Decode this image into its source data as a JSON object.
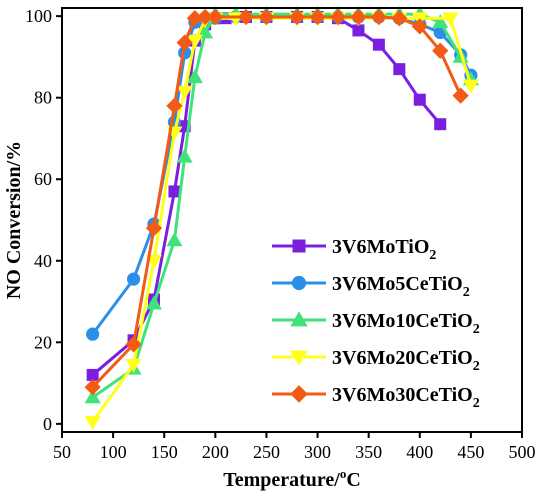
{
  "chart_data": {
    "type": "line",
    "xlabel": "Temperature/",
    "xlabel_sup": "o",
    "xlabel_unit": "C",
    "ylabel": "NO Conversion/%",
    "xlim": [
      50,
      500
    ],
    "ylim": [
      -2,
      102
    ],
    "xticks": [
      50,
      100,
      150,
      200,
      250,
      300,
      350,
      400,
      450,
      500
    ],
    "yticks": [
      0,
      20,
      40,
      60,
      80,
      100
    ],
    "grid": false,
    "legend_position": "center-right",
    "series": [
      {
        "name": "3V6MoTiO",
        "subscript": "2",
        "color": "#7a1fe0",
        "marker": "square",
        "points": [
          [
            80,
            12
          ],
          [
            120,
            20.5
          ],
          [
            140,
            30.5
          ],
          [
            160,
            57
          ],
          [
            170,
            73
          ],
          [
            180,
            94
          ],
          [
            190,
            98
          ],
          [
            200,
            99.5
          ],
          [
            210,
            99.5
          ],
          [
            230,
            99.8
          ],
          [
            250,
            99.8
          ],
          [
            280,
            99.8
          ],
          [
            300,
            99.8
          ],
          [
            320,
            99.5
          ],
          [
            340,
            96.5
          ],
          [
            360,
            93
          ],
          [
            380,
            87
          ],
          [
            400,
            79.5
          ],
          [
            420,
            73.5
          ]
        ]
      },
      {
        "name": "3V6Mo5CeTiO",
        "subscript": "2",
        "color": "#2a8fe8",
        "marker": "circle",
        "points": [
          [
            80,
            22
          ],
          [
            120,
            35.5
          ],
          [
            140,
            49
          ],
          [
            160,
            74
          ],
          [
            170,
            91
          ],
          [
            180,
            98.5
          ],
          [
            190,
            99.5
          ],
          [
            200,
            99.5
          ],
          [
            220,
            99.8
          ],
          [
            250,
            99.8
          ],
          [
            280,
            99.8
          ],
          [
            300,
            99.8
          ],
          [
            320,
            99.8
          ],
          [
            340,
            99.8
          ],
          [
            360,
            99.8
          ],
          [
            380,
            99.5
          ],
          [
            400,
            98
          ],
          [
            420,
            96
          ],
          [
            440,
            90.5
          ],
          [
            450,
            85.5
          ]
        ]
      },
      {
        "name": "3V6Mo10CeTiO",
        "subscript": "2",
        "color": "#3fe37a",
        "marker": "triangle",
        "points": [
          [
            80,
            6.5
          ],
          [
            120,
            13.5
          ],
          [
            140,
            29.5
          ],
          [
            160,
            45
          ],
          [
            170,
            65.5
          ],
          [
            180,
            85
          ],
          [
            190,
            96
          ],
          [
            200,
            100.5
          ],
          [
            220,
            100.5
          ],
          [
            250,
            100.5
          ],
          [
            280,
            100.5
          ],
          [
            300,
            100.5
          ],
          [
            320,
            100.5
          ],
          [
            340,
            100.5
          ],
          [
            360,
            100.5
          ],
          [
            380,
            100.5
          ],
          [
            400,
            100.5
          ],
          [
            420,
            98.5
          ],
          [
            440,
            90
          ],
          [
            450,
            84.5
          ]
        ]
      },
      {
        "name": "3V6Mo20CeTiO",
        "subscript": "2",
        "color": "#ffff1a",
        "marker": "triangle-down",
        "points": [
          [
            80,
            0.5
          ],
          [
            120,
            14.5
          ],
          [
            140,
            40
          ],
          [
            160,
            71.5
          ],
          [
            170,
            81.5
          ],
          [
            180,
            94
          ],
          [
            190,
            99
          ],
          [
            200,
            99.5
          ],
          [
            220,
            99.5
          ],
          [
            250,
            99.5
          ],
          [
            280,
            99.5
          ],
          [
            300,
            99.5
          ],
          [
            320,
            99.5
          ],
          [
            340,
            99.5
          ],
          [
            360,
            99.5
          ],
          [
            380,
            99.5
          ],
          [
            400,
            99.5
          ],
          [
            430,
            99.5
          ],
          [
            450,
            83
          ]
        ]
      },
      {
        "name": "3V6Mo30CeTiO",
        "subscript": "2",
        "color": "#f25a15",
        "marker": "diamond",
        "points": [
          [
            80,
            9
          ],
          [
            120,
            19.5
          ],
          [
            140,
            48
          ],
          [
            160,
            78
          ],
          [
            170,
            93.5
          ],
          [
            180,
            99.5
          ],
          [
            190,
            99.8
          ],
          [
            200,
            99.8
          ],
          [
            230,
            99.8
          ],
          [
            250,
            99.8
          ],
          [
            280,
            99.8
          ],
          [
            300,
            99.8
          ],
          [
            320,
            99.8
          ],
          [
            340,
            99.8
          ],
          [
            360,
            99.8
          ],
          [
            380,
            99.5
          ],
          [
            400,
            97.5
          ],
          [
            420,
            91.5
          ],
          [
            440,
            80.5
          ]
        ]
      }
    ]
  }
}
